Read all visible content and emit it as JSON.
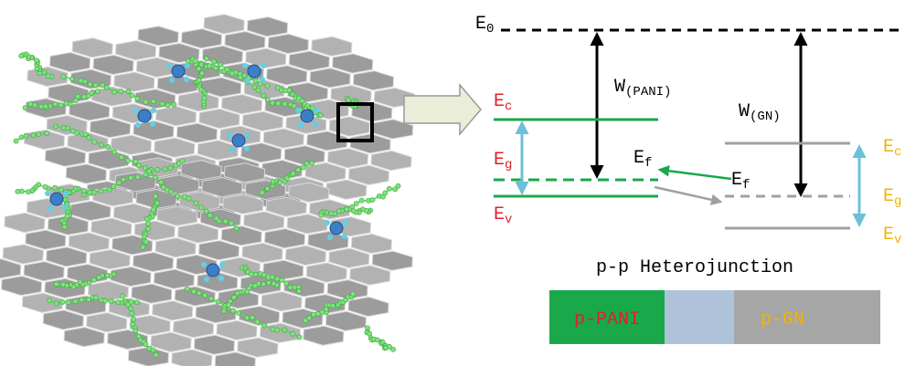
{
  "diagram": {
    "vacuum_level": {
      "main": "E",
      "sub": "0"
    },
    "work_functions": [
      {
        "main": "W",
        "sub": "(PANI)"
      },
      {
        "main": "W",
        "sub": "(GN)"
      }
    ],
    "pani_levels": [
      {
        "main": "E",
        "sub": "c"
      },
      {
        "main": "E",
        "sub": "g"
      },
      {
        "main": "E",
        "sub": "v"
      }
    ],
    "pani_fermi": {
      "main": "E",
      "sub": "f"
    },
    "gn_fermi": {
      "main": "E",
      "sub": "f"
    },
    "gn_levels": [
      {
        "main": "E",
        "sub": "c"
      },
      {
        "main": "E",
        "sub": "g"
      },
      {
        "main": "E",
        "sub": "v"
      }
    ],
    "heterojunction_title": "p-p Heterojunction",
    "bar_labels": [
      "p-PANI",
      "p-GN"
    ]
  }
}
